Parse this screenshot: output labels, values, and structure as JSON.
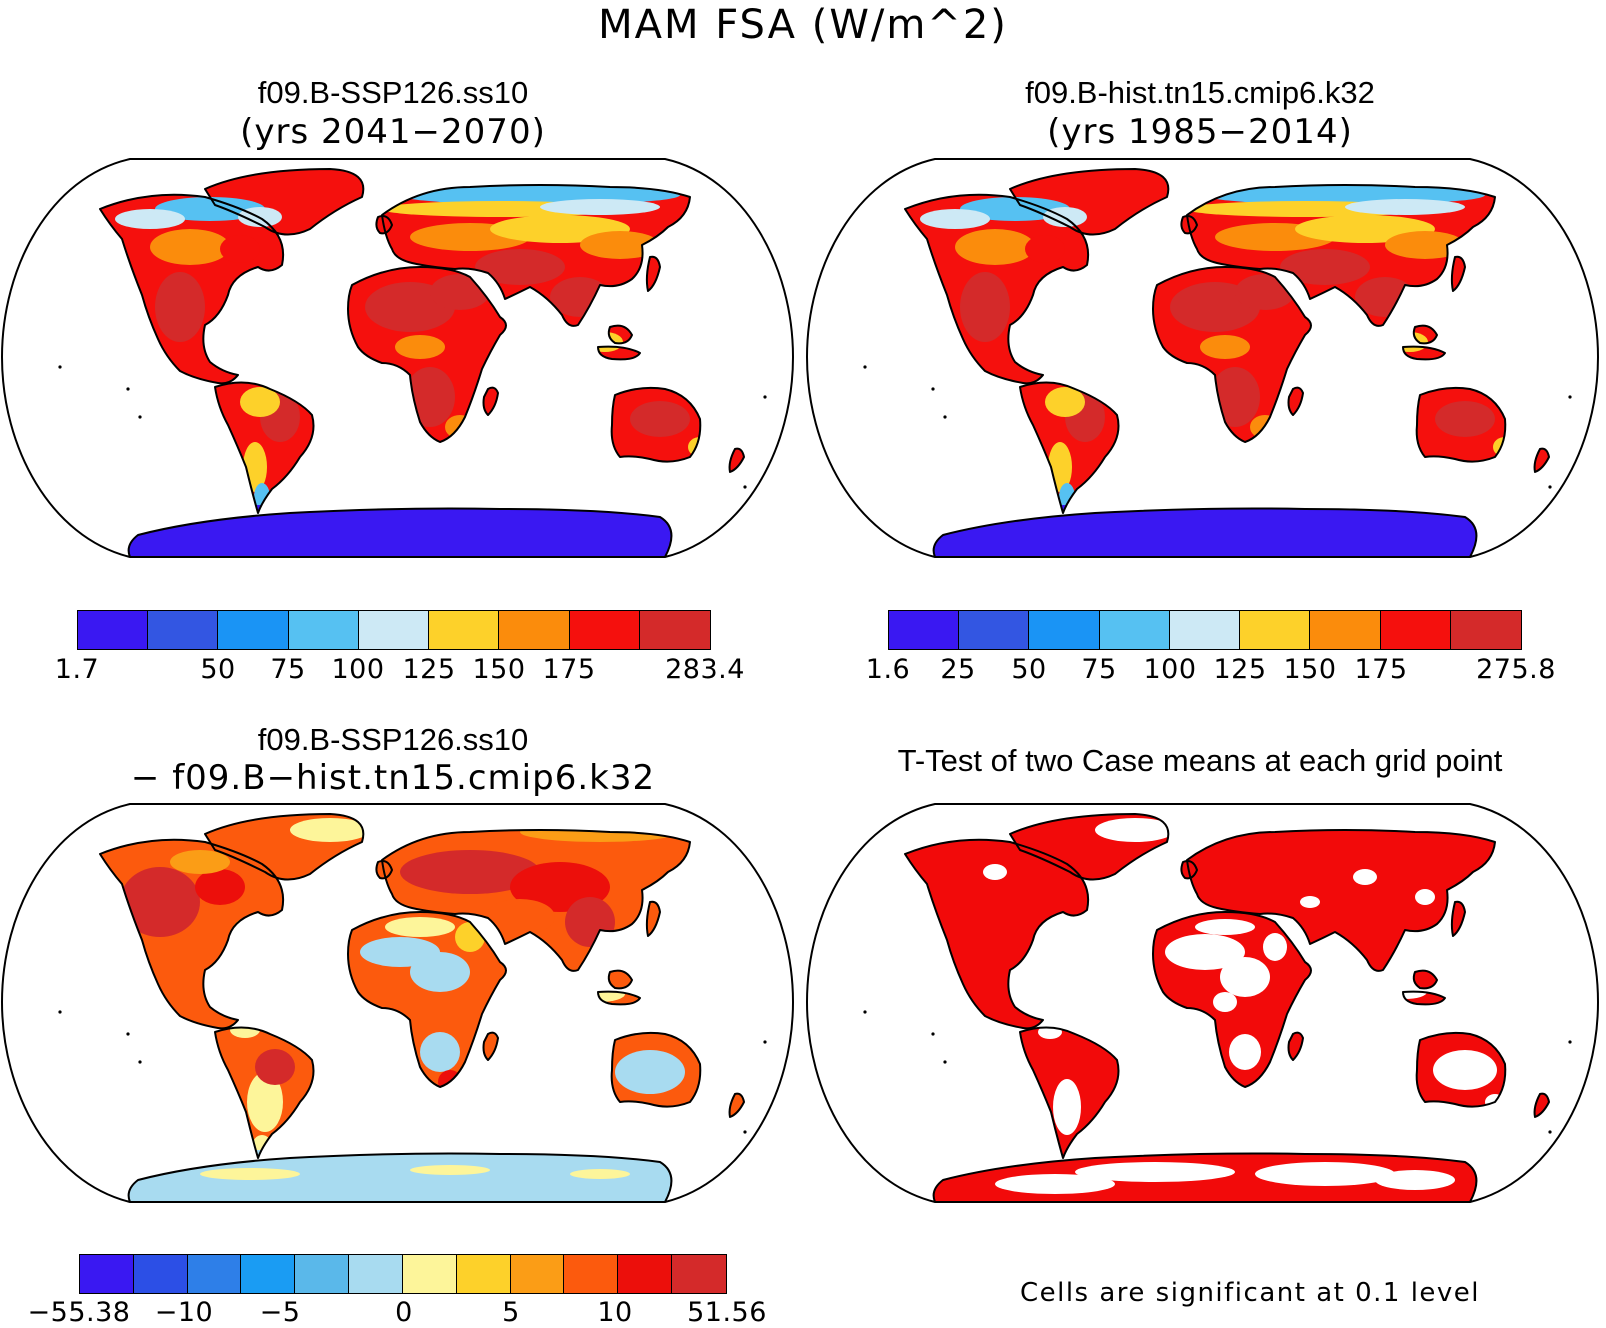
{
  "figure": {
    "title": "MAM FSA (W/m^2)"
  },
  "panels": {
    "future": {
      "title": "f09.B-SSP126.ss10",
      "subtitle": "(yrs 2041−2070)",
      "colorbar": {
        "colors": [
          "#3a18f2",
          "#3356e2",
          "#1a94f5",
          "#56c1f2",
          "#cde9f5",
          "#fdd12a",
          "#fb8c0c",
          "#f5100d",
          "#d42a2a"
        ],
        "ticks": [
          "1.7",
          "50",
          "75",
          "100",
          "125",
          "150",
          "175",
          "283.4"
        ]
      }
    },
    "historical": {
      "title": "f09.B-hist.tn15.cmip6.k32",
      "subtitle": "(yrs 1985−2014)",
      "colorbar": {
        "colors": [
          "#3a18f2",
          "#3356e2",
          "#1a94f5",
          "#56c1f2",
          "#cde9f5",
          "#fdd12a",
          "#fb8c0c",
          "#f5100d",
          "#d42a2a"
        ],
        "ticks": [
          "1.6",
          "25",
          "50",
          "75",
          "100",
          "125",
          "150",
          "175",
          "275.8"
        ]
      }
    },
    "difference": {
      "title": "f09.B-SSP126.ss10",
      "subtitle": "− f09.B−hist.tn15.cmip6.k32",
      "colorbar": {
        "colors": [
          "#3a18f2",
          "#2c4fe6",
          "#2e7fe8",
          "#1a9cf3",
          "#5ab8ea",
          "#a8dbf0",
          "#fdf59a",
          "#fdd12a",
          "#fb9d16",
          "#fc5a0d",
          "#ec0f0b",
          "#d42a2a"
        ],
        "ticks": [
          "−55.38",
          "−10",
          "−5",
          "0",
          "5",
          "10",
          "51.56"
        ]
      }
    },
    "ttest": {
      "title": "T-Test of two Case means at each grid point",
      "note": "Cells are significant at 0.1 level",
      "significant_color": "#f20a0a"
    }
  }
}
